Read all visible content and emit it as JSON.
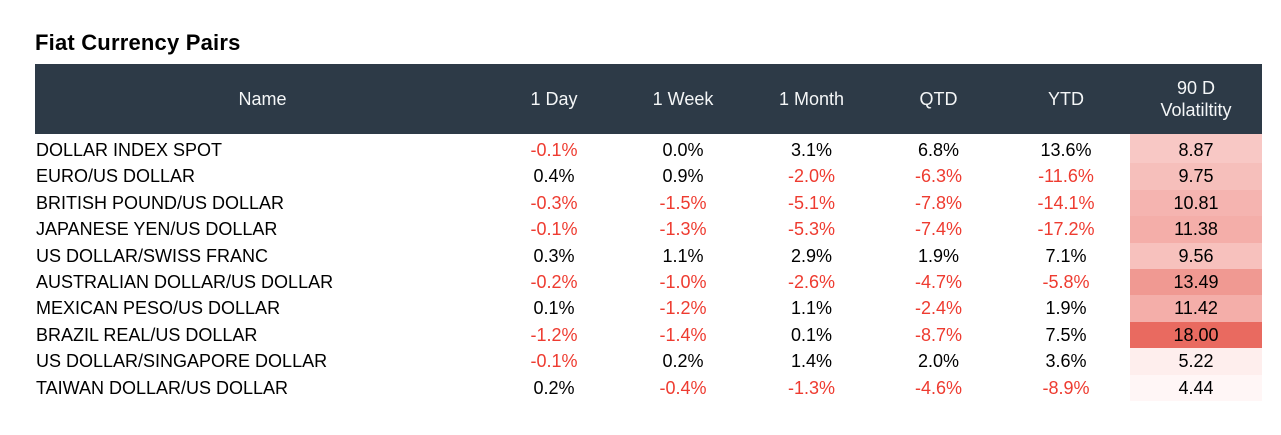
{
  "page_title": "Fiat Currency Pairs",
  "colors": {
    "header_bg": "#2d3a47",
    "header_text": "#f4f6f7",
    "negative_text": "#ee3b30",
    "positive_text": "#000000",
    "heat_scale_low": "#fff6f6",
    "heat_scale_high": "#e96a60"
  },
  "chart_data": {
    "type": "table",
    "title": "Fiat Currency Pairs",
    "columns": [
      "Name",
      "1 Day",
      "1 Week",
      "1 Month",
      "QTD",
      "YTD",
      "90 D\nVolatiltity"
    ],
    "column_ids": [
      "name",
      "1-day",
      "1-week",
      "1-month",
      "qtd",
      "ytd",
      "90d-volatility"
    ],
    "rows": [
      {
        "name": "DOLLAR INDEX SPOT",
        "pct_values": [
          "-0.1%",
          "0.0%",
          "3.1%",
          "6.8%",
          "13.6%"
        ],
        "volatility_90d": 8.87
      },
      {
        "name": "EURO/US DOLLAR",
        "pct_values": [
          "0.4%",
          "0.9%",
          "-2.0%",
          "-6.3%",
          "-11.6%"
        ],
        "volatility_90d": 9.75
      },
      {
        "name": "BRITISH POUND/US DOLLAR",
        "pct_values": [
          "-0.3%",
          "-1.5%",
          "-5.1%",
          "-7.8%",
          "-14.1%"
        ],
        "volatility_90d": 10.81
      },
      {
        "name": "JAPANESE YEN/US DOLLAR",
        "pct_values": [
          "-0.1%",
          "-1.3%",
          "-5.3%",
          "-7.4%",
          "-17.2%"
        ],
        "volatility_90d": 11.38
      },
      {
        "name": "US DOLLAR/SWISS FRANC",
        "pct_values": [
          "0.3%",
          "1.1%",
          "2.9%",
          "1.9%",
          "7.1%"
        ],
        "volatility_90d": 9.56
      },
      {
        "name": "AUSTRALIAN DOLLAR/US DOLLAR",
        "pct_values": [
          "-0.2%",
          "-1.0%",
          "-2.6%",
          "-4.7%",
          "-5.8%"
        ],
        "volatility_90d": 13.49
      },
      {
        "name": "MEXICAN PESO/US DOLLAR",
        "pct_values": [
          "0.1%",
          "-1.2%",
          "1.1%",
          "-2.4%",
          "1.9%"
        ],
        "volatility_90d": 11.42
      },
      {
        "name": "BRAZIL REAL/US DOLLAR",
        "pct_values": [
          "-1.2%",
          "-1.4%",
          "0.1%",
          "-8.7%",
          "7.5%"
        ],
        "volatility_90d": 18.0
      },
      {
        "name": "US DOLLAR/SINGAPORE DOLLAR",
        "pct_values": [
          "-0.1%",
          "0.2%",
          "1.4%",
          "2.0%",
          "3.6%"
        ],
        "volatility_90d": 5.22
      },
      {
        "name": "TAIWAN DOLLAR/US DOLLAR",
        "pct_values": [
          "0.2%",
          "-0.4%",
          "-1.3%",
          "-4.6%",
          "-8.9%"
        ],
        "volatility_90d": 4.44
      }
    ],
    "heat_column": "90 D Volatiltity",
    "heat_range": [
      4.44,
      18.0
    ]
  }
}
